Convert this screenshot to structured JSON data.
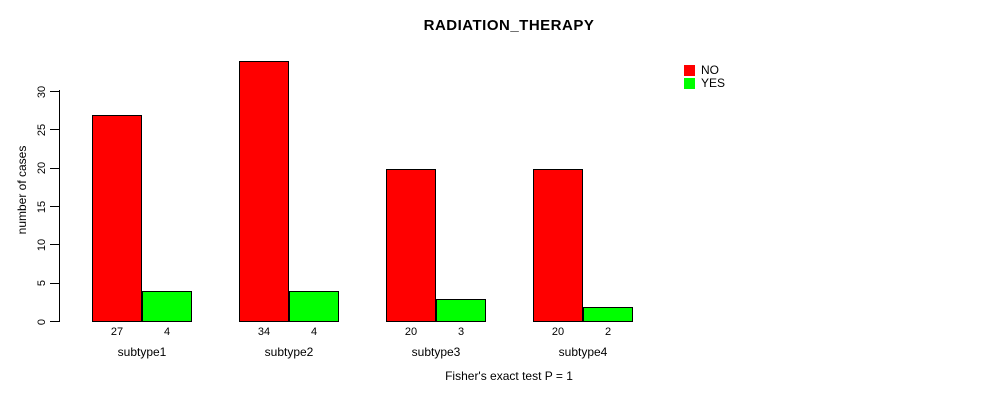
{
  "title": "RADIATION_THERAPY",
  "caption": "Fisher's exact test P = 1",
  "y_axis": {
    "label": "number of cases",
    "ticks": [
      0,
      5,
      10,
      15,
      20,
      25,
      30
    ]
  },
  "legend": {
    "items": [
      {
        "label": "NO",
        "color": "#ff0000"
      },
      {
        "label": "YES",
        "color": "#00ff00"
      }
    ]
  },
  "chart_data": {
    "type": "bar",
    "title": "RADIATION_THERAPY",
    "xlabel": "Fisher's exact test P = 1",
    "ylabel": "number of cases",
    "categories": [
      "subtype1",
      "subtype2",
      "subtype3",
      "subtype4"
    ],
    "series": [
      {
        "name": "NO",
        "color": "#ff0000",
        "values": [
          27,
          34,
          20,
          20
        ]
      },
      {
        "name": "YES",
        "color": "#00ff00",
        "values": [
          4,
          4,
          3,
          2
        ]
      }
    ],
    "bar_value_labels_shown": true,
    "ylim": [
      0,
      34
    ],
    "yticks": [
      0,
      5,
      10,
      15,
      20,
      25,
      30
    ],
    "grid": false,
    "legend_position": "top-right-inside",
    "background": "#ffffff"
  }
}
